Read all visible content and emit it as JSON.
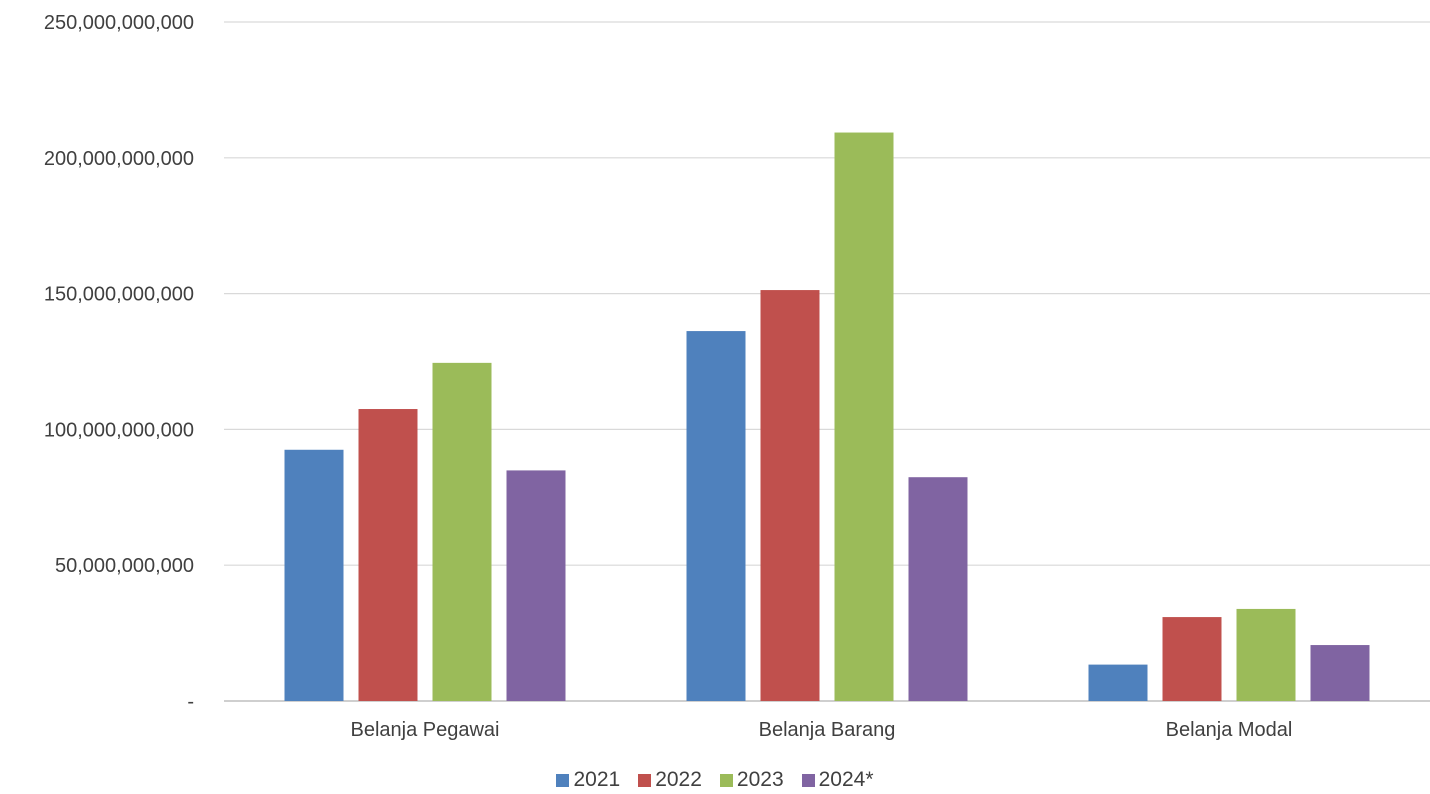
{
  "chart_data": {
    "type": "bar",
    "title": "",
    "xlabel": "",
    "ylabel": "",
    "categories": [
      "Belanja Pegawai",
      "Belanja Barang",
      "Belanja Modal"
    ],
    "series": [
      {
        "name": "2021",
        "color": "#4F81BD",
        "values": [
          92500000000,
          136200000000,
          13400000000
        ]
      },
      {
        "name": "2022",
        "color": "#C0504D",
        "values": [
          107500000000,
          151300000000,
          30900000000
        ]
      },
      {
        "name": "2023",
        "color": "#9BBB59",
        "values": [
          124500000000,
          209300000000,
          33900000000
        ]
      },
      {
        "name": "2024*",
        "color": "#8064A2",
        "values": [
          84900000000,
          82400000000,
          20600000000
        ]
      }
    ],
    "ylim": [
      0,
      250000000000
    ],
    "y_ticks": [
      {
        "value": 0,
        "label": "-"
      },
      {
        "value": 50000000000,
        "label": "50,000,000,000"
      },
      {
        "value": 100000000000,
        "label": "100,000,000,000"
      },
      {
        "value": 150000000000,
        "label": "150,000,000,000"
      },
      {
        "value": 200000000000,
        "label": "200,000,000,000"
      },
      {
        "value": 250000000000,
        "label": "250,000,000,000"
      }
    ],
    "grid": true,
    "legend_position": "bottom"
  }
}
